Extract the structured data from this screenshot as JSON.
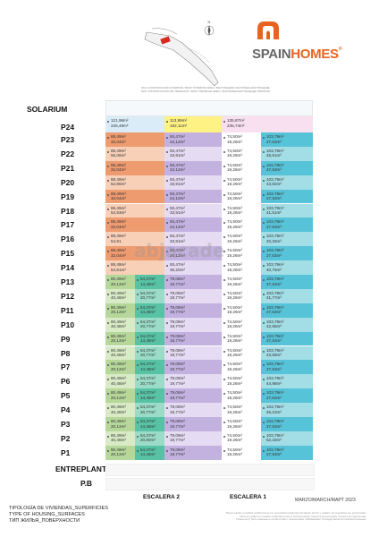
{
  "brand": {
    "name_a": "SPAIN",
    "name_b": "HOMES",
    "accent": "#e8641e",
    "gray": "#666666"
  },
  "map": {
    "compass": "N"
  },
  "caption": [
    "NUF CONSTRUCCION INTERIOR / BUILT INTERIOR AREA / ВНУТРЕННЯЯ ЗАСТРОЕННАЯ ПЛОЩАДЬ",
    "NUF CONSTRUCCION DE TERRAZAS / BUILT TERRACE AREA / ЗАСТРОЕННАЯ ПЛОЩАДЬ ТЕРРАСЫ"
  ],
  "solarium": {
    "label": "SOLARIUM",
    "p24": {
      "label": "P24",
      "cells": [
        {
          "a": "121,96m²",
          "b": "225,49m²"
        },
        {
          "a": "113,99m²",
          "b": "182,11m²"
        },
        {
          "a": "135,87m²",
          "b": "235,74m²"
        }
      ]
    }
  },
  "floors": [
    {
      "label": "P23",
      "cells": [
        null,
        {
          "a": "88,49m²",
          "b": "32,04m²"
        },
        {
          "a": "93,47m²",
          "b": "24,12m²"
        },
        {
          "a": "74,50m²",
          "b": "19,26m²"
        },
        {
          "a": "103,79m²",
          "b": "27,53m²"
        }
      ]
    },
    {
      "label": "P22",
      "cells": [
        null,
        {
          "a": "88,49m²",
          "b": "55,06m²"
        },
        {
          "a": "93,47m²",
          "b": "33,91m²"
        },
        {
          "a": "74,50m²",
          "b": "19,26m²"
        },
        {
          "a": "103,79m²",
          "b": "45,51m²"
        }
      ]
    },
    {
      "label": "P21",
      "cells": [
        null,
        {
          "a": "88,49m²",
          "b": "32,04m²"
        },
        {
          "a": "93,47m²",
          "b": "24,12m²"
        },
        {
          "a": "74,50m²",
          "b": "19,26m²"
        },
        {
          "a": "103,79m²",
          "b": "27,53m²"
        }
      ]
    },
    {
      "label": "P20",
      "cells": [
        null,
        {
          "a": "88,49m²",
          "b": "54,96m²"
        },
        {
          "a": "93,47m²",
          "b": "33,91m²"
        },
        {
          "a": "74,50m²",
          "b": "19,26m²"
        },
        {
          "a": "103,79m²",
          "b": "43,82m²"
        }
      ]
    },
    {
      "label": "P19",
      "cells": [
        null,
        {
          "a": "88,49m²",
          "b": "32,04m²"
        },
        {
          "a": "93,47m²",
          "b": "24,12m²"
        },
        {
          "a": "74,50m²",
          "b": "19,26m²"
        },
        {
          "a": "103,79m²",
          "b": "27,53m²"
        }
      ]
    },
    {
      "label": "P18",
      "cells": [
        null,
        {
          "a": "88,49m²",
          "b": "54,93m²"
        },
        {
          "a": "93,47m²",
          "b": "33,91m²"
        },
        {
          "a": "74,50m²",
          "b": "19,26m²"
        },
        {
          "a": "103,79m²",
          "b": "41,51m²"
        }
      ]
    },
    {
      "label": "P17",
      "cells": [
        null,
        {
          "a": "88,49m²",
          "b": "32,04m²"
        },
        {
          "a": "93,47m²",
          "b": "24,12m²"
        },
        {
          "a": "74,50m²",
          "b": "19,26m²"
        },
        {
          "a": "103,79m²",
          "b": "27,53m²"
        }
      ]
    },
    {
      "label": "P16",
      "cells": [
        null,
        {
          "a": "88,49m²",
          "b": "54,91"
        },
        {
          "a": "93,47m²",
          "b": "33,91m²"
        },
        {
          "a": "74,50m²",
          "b": "19,26m²"
        },
        {
          "a": "103,79m²",
          "b": "40,25m²"
        }
      ]
    },
    {
      "label": "P15",
      "cells": [
        null,
        {
          "a": "88,49m²",
          "b": "32,04m²"
        },
        {
          "a": "93,47m²",
          "b": "24,12m²"
        },
        {
          "a": "74,50m²",
          "b": "19,26m²"
        },
        {
          "a": "103,79m²",
          "b": "27,53m²"
        }
      ]
    },
    {
      "label": "P14",
      "cells": [
        null,
        {
          "a": "88,49m²",
          "b": "54,91m²"
        },
        {
          "a": "93,47m²",
          "b": "35,20m²"
        },
        {
          "a": "74,50m²",
          "b": "19,26m²"
        },
        {
          "a": "103,79m²",
          "b": "40,75m²"
        }
      ]
    },
    {
      "label": "P13",
      "cells": [
        {
          "a": "80,49m²",
          "b": "20,12m²"
        },
        {
          "a": "54,37m²",
          "b": "14,48m²"
        },
        {
          "a": "79,09m²",
          "b": "19,77m²"
        },
        {
          "a": "74,50m²",
          "b": "19,26m²"
        },
        {
          "a": "103,79m²",
          "b": "27,53m²"
        }
      ]
    },
    {
      "label": "P12",
      "cells": [
        {
          "a": "80,49m²",
          "b": "40,48m²"
        },
        {
          "a": "54,37m²",
          "b": "20,77m²"
        },
        {
          "a": "79,09m²",
          "b": "19,77m²"
        },
        {
          "a": "74,50m²",
          "b": "19,26m²"
        },
        {
          "a": "103,79m²",
          "b": "41,77m²"
        }
      ]
    },
    {
      "label": "P11",
      "cells": [
        {
          "a": "80,49m²",
          "b": "20,12m²"
        },
        {
          "a": "54,37m²",
          "b": "14,48m²"
        },
        {
          "a": "79,09m²",
          "b": "19,77m²"
        },
        {
          "a": "74,50m²",
          "b": "19,26m²"
        },
        {
          "a": "103,79m²",
          "b": "27,53m²"
        }
      ]
    },
    {
      "label": "P10",
      "cells": [
        {
          "a": "80,49m²",
          "b": "40,48m²"
        },
        {
          "a": "54,37m²",
          "b": "20,77m²"
        },
        {
          "a": "79,09m²",
          "b": "19,77m²"
        },
        {
          "a": "74,50m²",
          "b": "19,26m²"
        },
        {
          "a": "103,79m²",
          "b": "42,68m²"
        }
      ]
    },
    {
      "label": "P9",
      "cells": [
        {
          "a": "80,49m²",
          "b": "20,12m²"
        },
        {
          "a": "54,37m²",
          "b": "14,48m²"
        },
        {
          "a": "79,09m²",
          "b": "19,77m²"
        },
        {
          "a": "74,50m²",
          "b": "19,26m²"
        },
        {
          "a": "103,79m²",
          "b": "27,53m²"
        }
      ]
    },
    {
      "label": "P8",
      "cells": [
        {
          "a": "80,49m²",
          "b": "40,48m²"
        },
        {
          "a": "54,37m²",
          "b": "20,77m²"
        },
        {
          "a": "79,09m²",
          "b": "19,77m²"
        },
        {
          "a": "74,50m²",
          "b": "19,26m²"
        },
        {
          "a": "103,79m²",
          "b": "43,59m²"
        }
      ]
    },
    {
      "label": "P7",
      "cells": [
        {
          "a": "80,49m²",
          "b": "20,12m²"
        },
        {
          "a": "54,37m²",
          "b": "14,48m²"
        },
        {
          "a": "79,09m²",
          "b": "19,77m²"
        },
        {
          "a": "74,50m²",
          "b": "19,26m²"
        },
        {
          "a": "103,79m²",
          "b": "27,53m²"
        }
      ]
    },
    {
      "label": "P6",
      "cells": [
        {
          "a": "80,49m²",
          "b": "40,48m²"
        },
        {
          "a": "54,37m²",
          "b": "20,77m²"
        },
        {
          "a": "79,09m²",
          "b": "19,77m²"
        },
        {
          "a": "74,50m²",
          "b": "19,26m²"
        },
        {
          "a": "103,79m²",
          "b": "44,98m²"
        }
      ]
    },
    {
      "label": "P5",
      "cells": [
        {
          "a": "80,49m²",
          "b": "20,12m²"
        },
        {
          "a": "54,37m²",
          "b": "14,48m²"
        },
        {
          "a": "79,09m²",
          "b": "19,77m²"
        },
        {
          "a": "74,50m²",
          "b": "19,26m²"
        },
        {
          "a": "103,79m²",
          "b": "27,53m²"
        }
      ]
    },
    {
      "label": "P4",
      "cells": [
        {
          "a": "80,49m²",
          "b": "40,48m²"
        },
        {
          "a": "54,37m²",
          "b": "20,77m²"
        },
        {
          "a": "79,09m²",
          "b": "19,77m²"
        },
        {
          "a": "74,50m²",
          "b": "19,26m²"
        },
        {
          "a": "103,79m²",
          "b": "46,10m²"
        }
      ]
    },
    {
      "label": "P3",
      "cells": [
        {
          "a": "80,49m²",
          "b": "20,12m²"
        },
        {
          "a": "54,37m²",
          "b": "14,48m²"
        },
        {
          "a": "79,09m²",
          "b": "19,77m²"
        },
        {
          "a": "74,50m²",
          "b": "19,26m²"
        },
        {
          "a": "103,79m²",
          "b": "27,53m²"
        }
      ]
    },
    {
      "label": "P2",
      "cells": [
        {
          "a": "80,49m²",
          "b": "40,48m²"
        },
        {
          "a": "54,37m²",
          "b": "20,80m²"
        },
        {
          "a": "79,09m²",
          "b": "19,77m²"
        },
        {
          "a": "74,50m²",
          "b": "19,26m²"
        },
        {
          "a": "103,79m²",
          "b": "52,33m²"
        }
      ]
    },
    {
      "label": "P1",
      "cells": [
        {
          "a": "80,49m²",
          "b": "20,12m²"
        },
        {
          "a": "54,37m²",
          "b": "14,48m²"
        },
        {
          "a": "79,09m²",
          "b": "19,77m²"
        },
        {
          "a": "74,50m²",
          "b": "19,26m²"
        },
        {
          "a": "103,79m²",
          "b": "27,53m²"
        }
      ]
    }
  ],
  "entreplanta": "ENTREPLANTA",
  "pb": "P.B",
  "escalera2": "ESCALERA 2",
  "escalera1": "ESCALERA 1",
  "date": "MARZO/MARCH/МАРТ 2023",
  "footer": [
    "TIPOLOGÍA DE VIVIENDAS_SUPERFICIES",
    "TYPE OF HOUSING_SURFACES",
    "ТИП ЖИЛЬЯ_ПОВЕРХНОСТИ"
  ],
  "watermark": "abjacade",
  "disclaimer": [
    "Planos sujetos a posibles modificaciones por necesidad a exigencias del diseño técnico y calidad. Las superficies son aproximadas.",
    "Plans are subject to possible modifications due to technical design requirements and quality. Surfaces are approximate.",
    "Планы могут быть изменены в соответствии с техническими требованиями. Площади являются приблизительными."
  ],
  "colors": {
    "col_a_dark": "#b6d79a",
    "col_a_light": "#d9ebc6",
    "col_b_dark": "#57c3a4",
    "col_b_light": "#9adcc8",
    "col_c_dark": "#ee9b70",
    "col_c_light": "#f8d0b8",
    "col_d_dark": "#c3b1e0",
    "col_d_light": "#e5dbf2",
    "col_e": "#ffffff",
    "col_f_dark": "#57c3d8",
    "col_f_light": "#a3dde6",
    "sol_a": "#d9ecf8",
    "sol_b": "#fff284",
    "sol_c": "#f8e0f0"
  }
}
